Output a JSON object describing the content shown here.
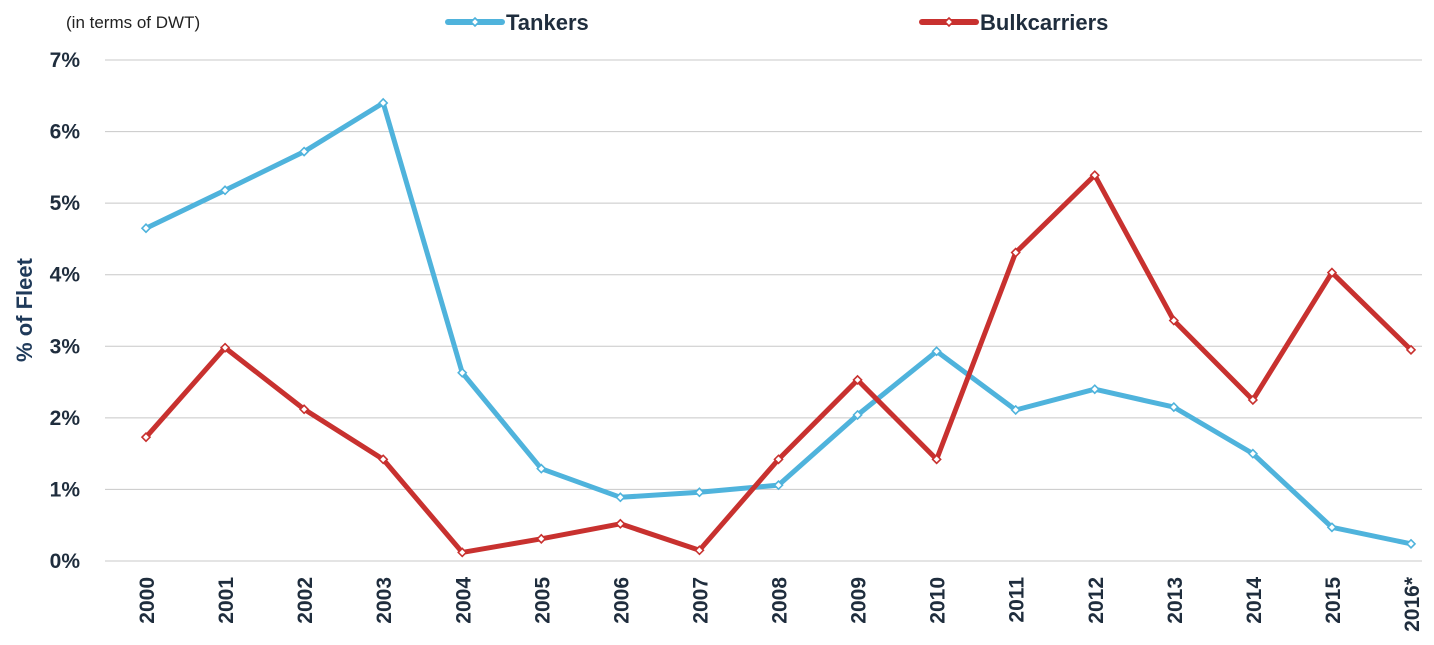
{
  "chart_data": {
    "type": "line",
    "subtitle": "(in terms of DWT)",
    "ylabel": "% of Fleet",
    "xlabel": "",
    "categories": [
      "2000",
      "2001",
      "2002",
      "2003",
      "2004",
      "2005",
      "2006",
      "2007",
      "2008",
      "2009",
      "2010",
      "2011",
      "2012",
      "2013",
      "2014",
      "2015",
      "2016*"
    ],
    "ylim": [
      0,
      7
    ],
    "yticks": [
      0,
      1,
      2,
      3,
      4,
      5,
      6,
      7
    ],
    "ytick_labels": [
      "0%",
      "1%",
      "2%",
      "3%",
      "4%",
      "5%",
      "6%",
      "7%"
    ],
    "grid": true,
    "legend_position": "top-center",
    "series": [
      {
        "name": "Tankers",
        "color": "#4fb3dc",
        "values": [
          4.65,
          5.18,
          5.72,
          6.4,
          2.63,
          1.29,
          0.89,
          0.96,
          1.06,
          2.04,
          2.93,
          2.11,
          2.4,
          2.15,
          1.5,
          0.47,
          0.24
        ]
      },
      {
        "name": "Bulkcarriers",
        "color": "#c8312f",
        "values": [
          1.73,
          2.98,
          2.12,
          1.42,
          0.12,
          0.31,
          0.52,
          0.15,
          1.42,
          2.53,
          1.42,
          4.31,
          5.39,
          3.36,
          2.25,
          4.03,
          2.95
        ]
      }
    ]
  }
}
